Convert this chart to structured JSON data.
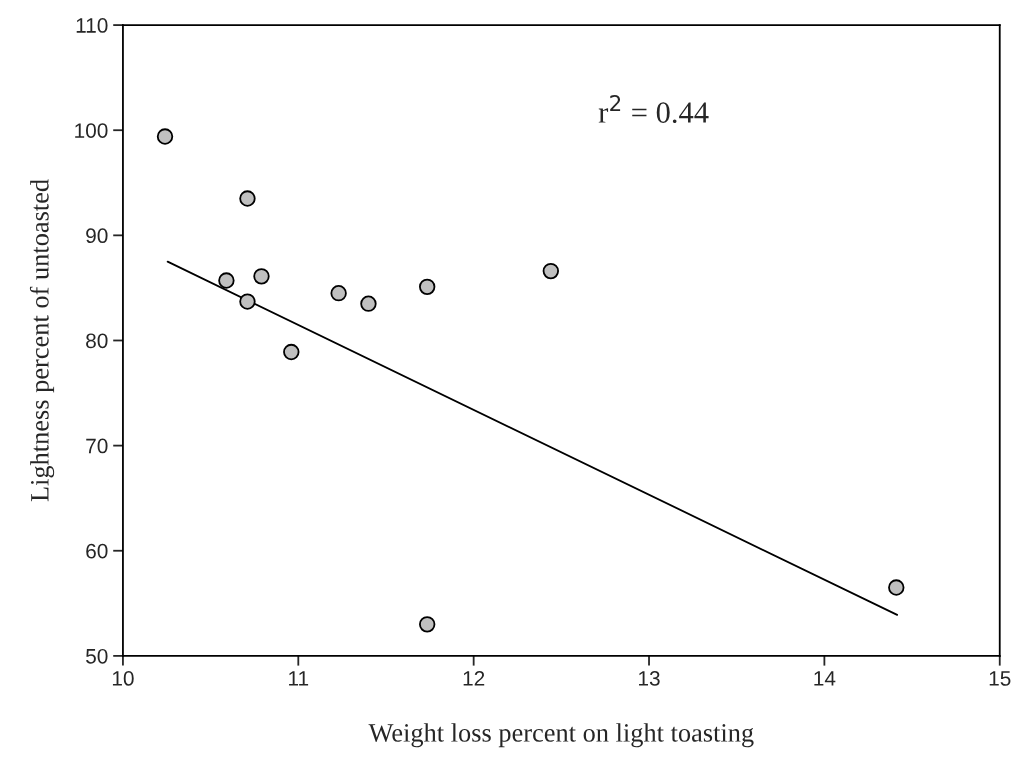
{
  "chart_data": {
    "type": "scatter",
    "xlabel": "Weight loss percent on light toasting",
    "ylabel": "Lightness percent of untoasted",
    "series": [
      {
        "color": "#c0c0c0",
        "marker": "circle",
        "x": [
          10.24,
          10.71,
          10.59,
          10.71,
          10.79,
          10.96,
          11.23,
          11.4,
          11.735,
          12.44,
          14.41,
          11.735
        ],
        "values": [
          99.4,
          93.5,
          85.7,
          83.7,
          86.1,
          78.9,
          84.5,
          83.5,
          85.1,
          86.6,
          56.5,
          53.0
        ]
      },
      {
        "type": "line",
        "color": "#000000",
        "marker": "none",
        "line_style": "solid",
        "x": [
          10.255,
          14.415
        ],
        "values": [
          87.5,
          53.9
        ]
      }
    ],
    "annotations": [
      "r$^{2}$ = 0.44"
    ],
    "xlim": [
      10,
      15
    ],
    "xticks": [
      10,
      11,
      12,
      13,
      14,
      15
    ],
    "ylim": [
      50,
      110
    ],
    "yticks": [
      50,
      60,
      70,
      80,
      90,
      100,
      110
    ],
    "grid": false,
    "legend": false
  }
}
